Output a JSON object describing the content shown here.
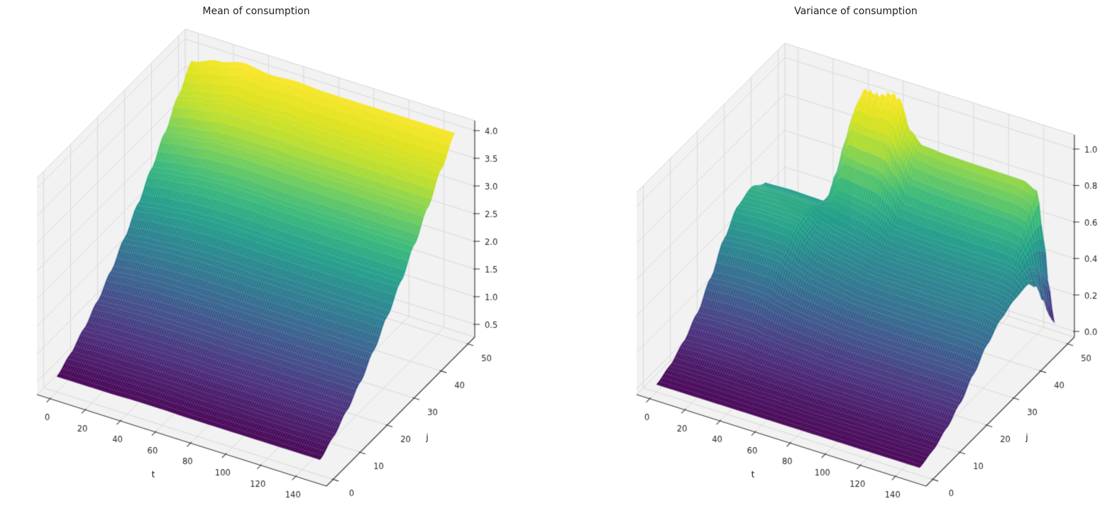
{
  "figure": {
    "background": "#ffffff",
    "pane_color": "#f2f2f3",
    "grid_color": "#d9d9d9",
    "axis_color": "#3f3f3f",
    "tick_text_color": "#262626",
    "colormap": "viridis"
  },
  "chart_data": [
    {
      "type": "surface",
      "title": "Mean of consumption",
      "xlabel": "t",
      "ylabel": "j",
      "x_ticks": [
        "0",
        "20",
        "40",
        "60",
        "80",
        "100",
        "120",
        "140"
      ],
      "y_ticks": [
        "0",
        "10",
        "20",
        "30",
        "40",
        "50"
      ],
      "z_ticks": [
        "0.5",
        "1.0",
        "1.5",
        "2.0",
        "2.5",
        "3.0",
        "3.5",
        "4.0"
      ],
      "x_range": [
        0,
        150
      ],
      "y_range": [
        0,
        50
      ],
      "z_range": [
        0.27,
        4.18
      ],
      "vmin": 0.55,
      "vmax": 4.06,
      "t_knots": [
        0,
        15,
        30,
        45,
        60,
        75,
        90,
        105,
        120,
        135,
        150
      ],
      "j_knots": [
        0,
        5,
        10,
        15,
        20,
        25,
        30,
        35,
        40,
        45,
        50
      ],
      "values": [
        [
          0.55,
          0.71,
          0.92,
          1.17,
          1.47,
          1.82,
          2.19,
          2.58,
          2.99,
          3.42,
          3.8
        ],
        [
          0.55,
          0.72,
          0.94,
          1.2,
          1.52,
          1.87,
          2.25,
          2.65,
          3.07,
          3.52,
          3.95
        ],
        [
          0.55,
          0.72,
          0.95,
          1.22,
          1.55,
          1.91,
          2.3,
          2.71,
          3.14,
          3.62,
          4.06
        ],
        [
          0.56,
          0.73,
          0.96,
          1.23,
          1.56,
          1.93,
          2.32,
          2.74,
          3.17,
          3.6,
          4.0
        ],
        [
          0.56,
          0.73,
          0.96,
          1.23,
          1.56,
          1.93,
          2.32,
          2.74,
          3.17,
          3.62,
          4.03
        ],
        [
          0.55,
          0.72,
          0.95,
          1.22,
          1.55,
          1.92,
          2.31,
          2.72,
          3.15,
          3.6,
          4.0
        ],
        [
          0.55,
          0.72,
          0.95,
          1.22,
          1.55,
          1.92,
          2.3,
          2.72,
          3.15,
          3.6,
          4.0
        ],
        [
          0.55,
          0.72,
          0.95,
          1.22,
          1.55,
          1.92,
          2.3,
          2.72,
          3.15,
          3.6,
          4.0
        ],
        [
          0.55,
          0.72,
          0.95,
          1.22,
          1.55,
          1.92,
          2.3,
          2.72,
          3.15,
          3.6,
          4.0
        ],
        [
          0.55,
          0.72,
          0.95,
          1.22,
          1.55,
          1.92,
          2.3,
          2.72,
          3.15,
          3.6,
          4.0
        ],
        [
          0.55,
          0.72,
          0.95,
          1.22,
          1.55,
          1.92,
          2.3,
          2.72,
          3.15,
          3.6,
          4.0
        ]
      ]
    },
    {
      "type": "surface",
      "title": "Variance of consumption",
      "xlabel": "t",
      "ylabel": "j",
      "x_ticks": [
        "0",
        "20",
        "40",
        "60",
        "80",
        "100",
        "120",
        "140"
      ],
      "y_ticks": [
        "0",
        "10",
        "20",
        "30",
        "40",
        "50"
      ],
      "z_ticks": [
        "0.0",
        "0.2",
        "0.4",
        "0.6",
        "0.8",
        "1.0"
      ],
      "x_range": [
        0,
        150
      ],
      "y_range": [
        0,
        50
      ],
      "z_range": [
        -0.031,
        1.078
      ],
      "vmin": 0.01,
      "vmax": 1.035,
      "t_knots": [
        0,
        15,
        28,
        33,
        37,
        42,
        50,
        58,
        62,
        68,
        75,
        90,
        105,
        120,
        132,
        140,
        144,
        147,
        150
      ],
      "j_knots": [
        0,
        5,
        10,
        15,
        20,
        25,
        30,
        35,
        40,
        43,
        46,
        48,
        50
      ],
      "values": [
        [
          0.01,
          0.04,
          0.095,
          0.175,
          0.295,
          0.435,
          0.54,
          0.57,
          0.52,
          0.43,
          0.33,
          0.27,
          0.22
        ],
        [
          0.01,
          0.042,
          0.1,
          0.182,
          0.305,
          0.445,
          0.55,
          0.575,
          0.525,
          0.435,
          0.335,
          0.272,
          0.222
        ],
        [
          0.01,
          0.042,
          0.1,
          0.182,
          0.305,
          0.445,
          0.548,
          0.572,
          0.522,
          0.432,
          0.332,
          0.27,
          0.22
        ],
        [
          0.01,
          0.042,
          0.1,
          0.18,
          0.3,
          0.44,
          0.545,
          0.568,
          0.52,
          0.435,
          0.34,
          0.28,
          0.23
        ],
        [
          0.01,
          0.04,
          0.095,
          0.172,
          0.285,
          0.415,
          0.51,
          0.53,
          0.56,
          0.66,
          0.79,
          0.87,
          0.92
        ],
        [
          0.01,
          0.04,
          0.092,
          0.168,
          0.275,
          0.395,
          0.47,
          0.51,
          0.6,
          0.74,
          0.89,
          0.98,
          1.01
        ],
        [
          0.01,
          0.038,
          0.09,
          0.162,
          0.262,
          0.37,
          0.445,
          0.49,
          0.59,
          0.73,
          0.88,
          0.97,
          1.005
        ],
        [
          0.01,
          0.038,
          0.088,
          0.158,
          0.255,
          0.358,
          0.43,
          0.475,
          0.58,
          0.725,
          0.88,
          0.98,
          1.035
        ],
        [
          0.01,
          0.038,
          0.088,
          0.156,
          0.252,
          0.352,
          0.425,
          0.468,
          0.572,
          0.715,
          0.87,
          0.965,
          1.015
        ],
        [
          0.01,
          0.036,
          0.085,
          0.152,
          0.245,
          0.342,
          0.415,
          0.455,
          0.545,
          0.66,
          0.78,
          0.835,
          0.865
        ],
        [
          0.01,
          0.034,
          0.082,
          0.148,
          0.238,
          0.332,
          0.402,
          0.442,
          0.505,
          0.585,
          0.68,
          0.755,
          0.805
        ],
        [
          0.01,
          0.033,
          0.08,
          0.145,
          0.235,
          0.328,
          0.398,
          0.438,
          0.498,
          0.575,
          0.668,
          0.742,
          0.795
        ],
        [
          0.01,
          0.033,
          0.08,
          0.145,
          0.233,
          0.326,
          0.396,
          0.436,
          0.495,
          0.572,
          0.665,
          0.74,
          0.792
        ],
        [
          0.01,
          0.033,
          0.08,
          0.144,
          0.232,
          0.325,
          0.395,
          0.435,
          0.494,
          0.57,
          0.663,
          0.738,
          0.79
        ],
        [
          0.01,
          0.033,
          0.08,
          0.144,
          0.232,
          0.325,
          0.395,
          0.435,
          0.493,
          0.568,
          0.66,
          0.735,
          0.788
        ],
        [
          0.01,
          0.033,
          0.08,
          0.144,
          0.232,
          0.324,
          0.394,
          0.433,
          0.49,
          0.56,
          0.645,
          0.712,
          0.755
        ],
        [
          0.01,
          0.033,
          0.08,
          0.143,
          0.23,
          0.322,
          0.39,
          0.428,
          0.478,
          0.52,
          0.54,
          0.528,
          0.5
        ],
        [
          0.01,
          0.033,
          0.079,
          0.142,
          0.228,
          0.318,
          0.384,
          0.42,
          0.455,
          0.448,
          0.39,
          0.31,
          0.24
        ],
        [
          0.01,
          0.032,
          0.078,
          0.14,
          0.225,
          0.312,
          0.375,
          0.408,
          0.42,
          0.365,
          0.24,
          0.13,
          0.06
        ]
      ]
    }
  ]
}
